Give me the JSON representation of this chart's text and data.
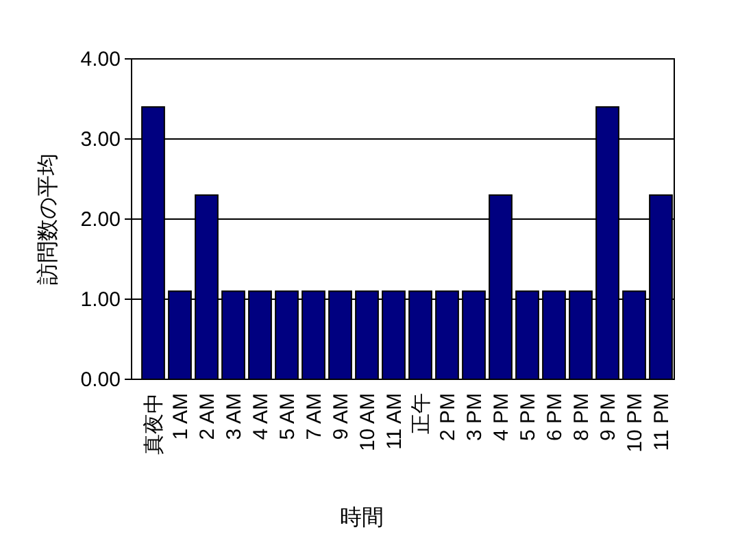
{
  "chart_data": {
    "type": "bar",
    "xlabel": "時間",
    "ylabel": "訪問数の平均",
    "categories": [
      "真夜中",
      "1 AM",
      "2 AM",
      "3 AM",
      "4 AM",
      "5 AM",
      "7 AM",
      "9 AM",
      "10 AM",
      "11 AM",
      "正午",
      "2 PM",
      "3 PM",
      "4 PM",
      "5 PM",
      "6 PM",
      "8 PM",
      "9 PM",
      "10 PM",
      "11 PM"
    ],
    "values": [
      3.4,
      1.1,
      2.3,
      1.1,
      1.1,
      1.1,
      1.1,
      1.1,
      1.1,
      1.1,
      1.1,
      1.1,
      1.1,
      2.3,
      1.1,
      1.1,
      1.1,
      3.4,
      1.1,
      2.3
    ],
    "color": "#000080",
    "ylim": [
      0,
      4
    ],
    "yticks": [
      {
        "value": 0,
        "label": "0.00"
      },
      {
        "value": 1,
        "label": "1.00"
      },
      {
        "value": 2,
        "label": "2.00"
      },
      {
        "value": 3,
        "label": "3.00"
      },
      {
        "value": 4,
        "label": "4.00"
      }
    ],
    "grid": "y"
  }
}
